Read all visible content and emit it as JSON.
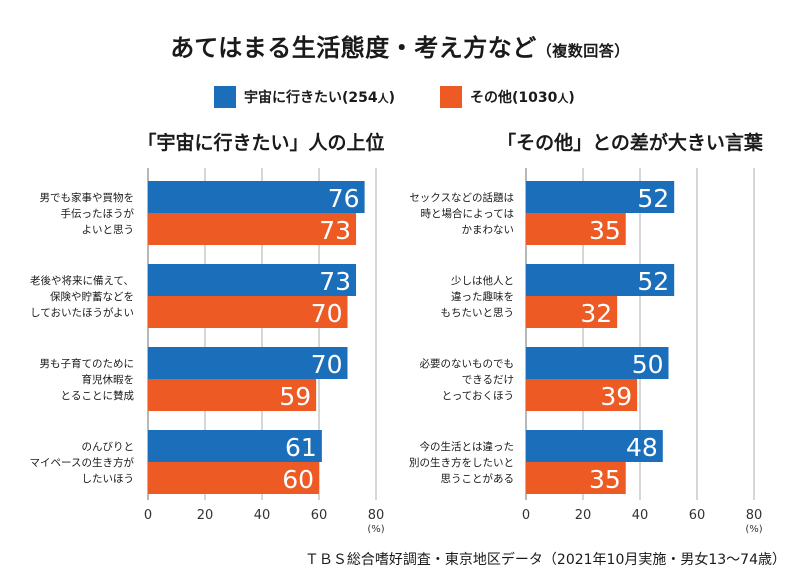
{
  "title": {
    "main": "あてはまる生活態度・考え方など",
    "sub": "（複数回答）"
  },
  "legend": [
    {
      "name": "宇宙に行きたい",
      "count": "(254",
      "unit": "人",
      "close": ")",
      "color": "#1b6fba"
    },
    {
      "name": "その他",
      "count": "(1030",
      "unit": "人",
      "close": ")",
      "color": "#ed5a24"
    }
  ],
  "colors": {
    "series1": "#1b6fba",
    "series2": "#ed5a24",
    "grid": "#999999"
  },
  "source": "ＴＢＳ総合嗜好調査・東京地区データ（2021年10月実施・男女13〜74歳）",
  "chart_data": [
    {
      "type": "bar",
      "orientation": "horizontal",
      "title": "「宇宙に行きたい」人の上位",
      "categories": [
        [
          "男でも家事や買物を",
          "手伝ったほうが",
          "よいと思う"
        ],
        [
          "老後や将来に備えて、",
          "保険や貯蓄などを",
          "しておいたほうがよい"
        ],
        [
          "男も子育てのために",
          "育児休暇を",
          "とることに賛成"
        ],
        [
          "のんびりと",
          "マイペースの生き方が",
          "したいほう"
        ]
      ],
      "series": [
        {
          "name": "宇宙に行きたい",
          "values": [
            76,
            73,
            70,
            61
          ]
        },
        {
          "name": "その他",
          "values": [
            73,
            70,
            59,
            60
          ]
        }
      ],
      "xticks": [
        "0",
        "20",
        "40",
        "60",
        "80"
      ],
      "xunit": "(%)",
      "xlim": [
        0,
        80
      ],
      "grid": true
    },
    {
      "type": "bar",
      "orientation": "horizontal",
      "title": "「その他」との差が大きい言葉",
      "categories": [
        [
          "セックスなどの話題は",
          "時と場合によっては",
          "かまわない"
        ],
        [
          "少しは他人と",
          "違った趣味を",
          "もちたいと思う"
        ],
        [
          "必要のないものでも",
          "できるだけ",
          "とっておくほう"
        ],
        [
          "今の生活とは違った",
          "別の生き方をしたいと",
          "思うことがある"
        ]
      ],
      "series": [
        {
          "name": "宇宙に行きたい",
          "values": [
            52,
            52,
            50,
            48
          ]
        },
        {
          "name": "その他",
          "values": [
            35,
            32,
            39,
            35
          ]
        }
      ],
      "xticks": [
        "0",
        "20",
        "40",
        "60",
        "80"
      ],
      "xunit": "(%)",
      "xlim": [
        0,
        80
      ],
      "grid": true
    }
  ]
}
